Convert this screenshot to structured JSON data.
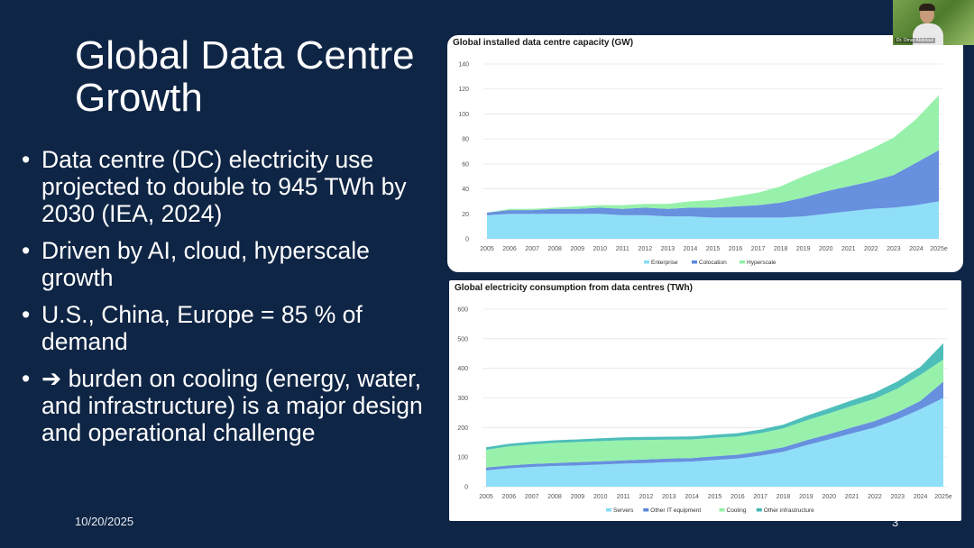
{
  "slide": {
    "title": "Global Data Centre Growth",
    "bullets": [
      "Data centre (DC) electricity use projected to double to 945 TWh by 2030 (IEA, 2024)",
      "Driven by AI, cloud, hyperscale growth",
      "U.S., China, Europe = 85 % of demand",
      "➔ burden on cooling (energy, water, and infrastructure) is a major design and operational challenge"
    ],
    "bullet_symbol": "•",
    "date": "10/20/2025",
    "page_number": "3"
  },
  "webcam": {
    "name": "Dr. Omar Abdelaal"
  },
  "colors": {
    "background": "#0f2545",
    "enterprise": "#86dcf8",
    "colocation": "#5a87db",
    "hyperscale": "#8ef0a4",
    "servers": "#86dcf8",
    "other_it": "#5a87db",
    "cooling": "#8ef0a4",
    "other_infra": "#3fb8b4"
  },
  "chart_data": [
    {
      "type": "area",
      "stacked": true,
      "title": "Global installed data centre capacity (GW)",
      "x": [
        "2005",
        "2006",
        "2007",
        "2008",
        "2009",
        "2010",
        "2011",
        "2012",
        "2013",
        "2014",
        "2015",
        "2016",
        "2017",
        "2018",
        "2019",
        "2020",
        "2021",
        "2022",
        "2023",
        "2024",
        "2025e"
      ],
      "ylim": [
        0,
        140
      ],
      "yticks": [
        0,
        20,
        40,
        60,
        80,
        100,
        120,
        140
      ],
      "series": [
        {
          "name": "Enterprise",
          "values": [
            19,
            20,
            20,
            20,
            20,
            20,
            19,
            19,
            18,
            18,
            17,
            17,
            17,
            17,
            18,
            20,
            22,
            24,
            25,
            27,
            30
          ]
        },
        {
          "name": "Colocation",
          "values": [
            2,
            3,
            3,
            4,
            4,
            5,
            5,
            6,
            6,
            7,
            8,
            9,
            10,
            12,
            15,
            18,
            20,
            22,
            26,
            34,
            41
          ]
        },
        {
          "name": "Hyperscale",
          "values": [
            0,
            1,
            1,
            1,
            2,
            2,
            3,
            3,
            4,
            5,
            6,
            8,
            10,
            13,
            17,
            19,
            22,
            26,
            30,
            35,
            44
          ]
        }
      ],
      "legend": [
        "Enterprise",
        "Colocation",
        "Hyperscale"
      ]
    },
    {
      "type": "area",
      "stacked": true,
      "title": "Global electricity consumption from data centres (TWh)",
      "x": [
        "2005",
        "2006",
        "2007",
        "2008",
        "2009",
        "2010",
        "2011",
        "2012",
        "2013",
        "2014",
        "2015",
        "2016",
        "2017",
        "2018",
        "2019",
        "2020",
        "2021",
        "2022",
        "2023",
        "2024",
        "2025e"
      ],
      "ylim": [
        0,
        600
      ],
      "yticks": [
        0,
        100,
        200,
        300,
        400,
        500,
        600
      ],
      "series": [
        {
          "name": "Servers",
          "values": [
            55,
            62,
            67,
            70,
            72,
            75,
            78,
            80,
            83,
            85,
            90,
            95,
            105,
            118,
            140,
            160,
            180,
            200,
            228,
            262,
            300
          ]
        },
        {
          "name": "Other IT equipment",
          "values": [
            10,
            10,
            10,
            10,
            11,
            11,
            11,
            12,
            12,
            12,
            13,
            13,
            14,
            15,
            17,
            18,
            20,
            22,
            24,
            28,
            55
          ]
        },
        {
          "name": "Cooling",
          "values": [
            60,
            64,
            66,
            68,
            68,
            68,
            68,
            66,
            64,
            63,
            62,
            62,
            62,
            64,
            67,
            70,
            73,
            75,
            80,
            88,
            75
          ]
        },
        {
          "name": "Other infrastructure",
          "values": [
            8,
            9,
            9,
            9,
            9,
            10,
            10,
            10,
            10,
            10,
            11,
            11,
            12,
            13,
            15,
            17,
            19,
            21,
            24,
            27,
            55
          ]
        }
      ],
      "legend": [
        "Servers",
        "Other IT equipment",
        "Cooling",
        "Other infrastructure"
      ]
    }
  ]
}
